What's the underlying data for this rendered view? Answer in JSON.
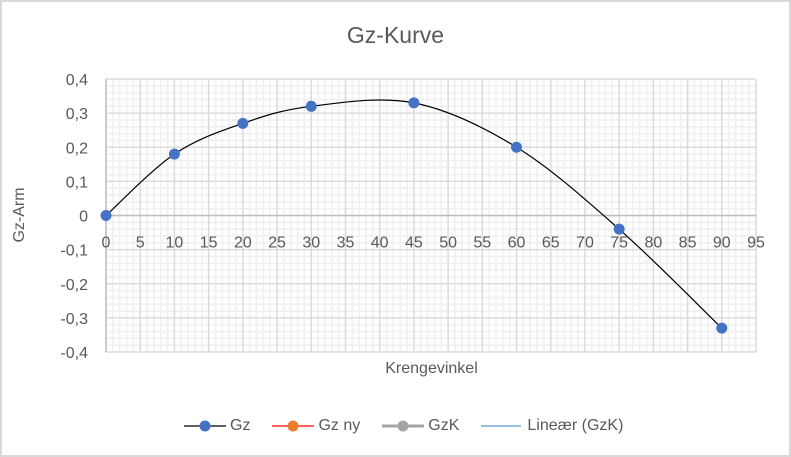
{
  "chart_data": {
    "type": "line",
    "title": "Gz-Kurve",
    "xlabel": "Krengevinkel",
    "ylabel": "Gz-Arm",
    "xlim": [
      0,
      95
    ],
    "ylim": [
      -0.4,
      0.4
    ],
    "x_ticks": [
      "0",
      "5",
      "10",
      "15",
      "20",
      "25",
      "30",
      "35",
      "40",
      "45",
      "50",
      "55",
      "60",
      "65",
      "70",
      "75",
      "80",
      "85",
      "90",
      "95"
    ],
    "y_ticks": [
      "0,4",
      "0,3",
      "0,2",
      "0,1",
      "0",
      "-0,1",
      "-0,2",
      "-0,3",
      "-0,4"
    ],
    "grid": {
      "major": true,
      "minor": true
    },
    "legend_position": "bottom",
    "series": [
      {
        "name": "Gz",
        "x": [
          0,
          10,
          20,
          30,
          45,
          60,
          75,
          90
        ],
        "values": [
          0,
          0.18,
          0.27,
          0.32,
          0.33,
          0.2,
          -0.04,
          -0.33
        ],
        "line_color": "#000000",
        "marker_color": "#4472c4",
        "smooth": true
      },
      {
        "name": "Gz ny",
        "x": [],
        "values": [],
        "line_color": "#ff0000",
        "marker_color": "#ed7d31"
      },
      {
        "name": "GzK",
        "x": [],
        "values": [],
        "line_color": "#a5a5a5",
        "marker_color": "#a5a5a5"
      },
      {
        "name": "Lineær (GzK)",
        "x": [],
        "values": [],
        "line_color": "#5b9bd5",
        "trendline": true
      }
    ]
  },
  "legend": {
    "items": [
      {
        "label": "Gz"
      },
      {
        "label": "Gz ny"
      },
      {
        "label": "GzK"
      },
      {
        "label": "Lineær (GzK)"
      }
    ]
  }
}
